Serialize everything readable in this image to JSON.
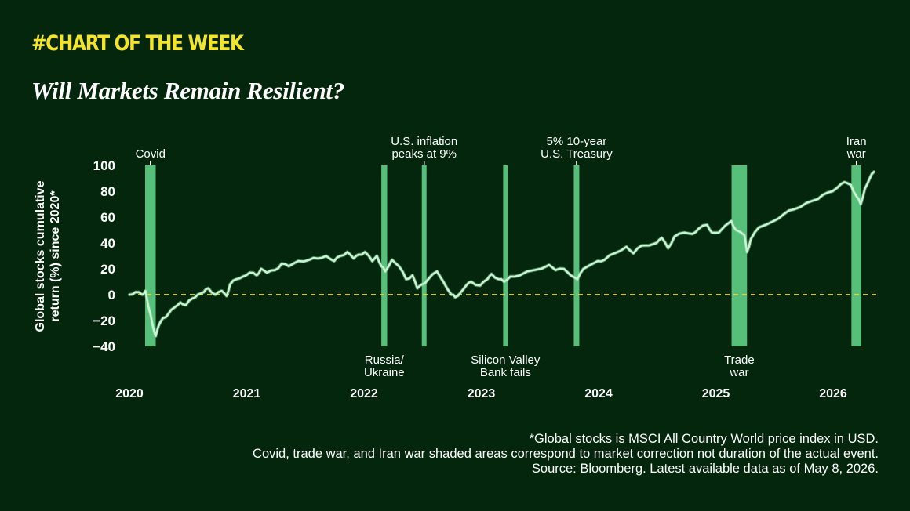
{
  "header": {
    "kicker": "#CHART OF THE WEEK",
    "title": "Will Markets Remain Resilient?"
  },
  "chart_data": {
    "type": "line",
    "ylabel": "Global stocks cumulative return (%) since 2020*",
    "yticks": [
      "100",
      "80",
      "60",
      "40",
      "20",
      "0",
      "−20",
      "−40"
    ],
    "xticks": [
      "2020",
      "2021",
      "2022",
      "2023",
      "2024",
      "2025",
      "2026"
    ],
    "ylim": [
      -40,
      100
    ],
    "xlim": [
      "2020-01-01",
      "2026-05-08"
    ],
    "zero_line": {
      "value": 0,
      "style": "dashed",
      "color": "#e8d93c"
    },
    "series": [
      {
        "color": "#c9f3d3",
        "points": [
          [
            "2020-01-01",
            0
          ],
          [
            "2020-01-20",
            2
          ],
          [
            "2020-02-10",
            0
          ],
          [
            "2020-02-20",
            3
          ],
          [
            "2020-03-01",
            -10
          ],
          [
            "2020-03-12",
            -22
          ],
          [
            "2020-03-23",
            -32
          ],
          [
            "2020-04-01",
            -24
          ],
          [
            "2020-04-15",
            -18
          ],
          [
            "2020-05-01",
            -15
          ],
          [
            "2020-05-20",
            -10
          ],
          [
            "2020-06-08",
            -6
          ],
          [
            "2020-06-25",
            -8
          ],
          [
            "2020-07-15",
            -3
          ],
          [
            "2020-08-01",
            0
          ],
          [
            "2020-08-20",
            2
          ],
          [
            "2020-09-03",
            5
          ],
          [
            "2020-09-25",
            0
          ],
          [
            "2020-10-15",
            3
          ],
          [
            "2020-10-30",
            -1
          ],
          [
            "2020-11-10",
            8
          ],
          [
            "2020-11-30",
            12
          ],
          [
            "2020-12-20",
            14
          ],
          [
            "2021-01-10",
            17
          ],
          [
            "2021-02-01",
            15
          ],
          [
            "2021-02-15",
            20
          ],
          [
            "2021-03-05",
            17
          ],
          [
            "2021-03-30",
            19
          ],
          [
            "2021-04-20",
            24
          ],
          [
            "2021-05-12",
            22
          ],
          [
            "2021-06-10",
            26
          ],
          [
            "2021-07-15",
            27
          ],
          [
            "2021-08-10",
            28
          ],
          [
            "2021-09-05",
            30
          ],
          [
            "2021-09-30",
            26
          ],
          [
            "2021-10-20",
            30
          ],
          [
            "2021-11-10",
            33
          ],
          [
            "2021-11-30",
            28
          ],
          [
            "2021-12-15",
            31
          ],
          [
            "2022-01-04",
            33
          ],
          [
            "2022-01-27",
            26
          ],
          [
            "2022-02-10",
            30
          ],
          [
            "2022-02-24",
            22
          ],
          [
            "2022-03-08",
            18
          ],
          [
            "2022-03-29",
            27
          ],
          [
            "2022-04-20",
            22
          ],
          [
            "2022-05-12",
            12
          ],
          [
            "2022-06-01",
            15
          ],
          [
            "2022-06-16",
            5
          ],
          [
            "2022-07-01",
            8
          ],
          [
            "2022-07-20",
            12
          ],
          [
            "2022-08-16",
            18
          ],
          [
            "2022-09-05",
            10
          ],
          [
            "2022-09-30",
            0
          ],
          [
            "2022-10-12",
            -2
          ],
          [
            "2022-10-30",
            2
          ],
          [
            "2022-11-15",
            7
          ],
          [
            "2022-12-01",
            10
          ],
          [
            "2022-12-28",
            7
          ],
          [
            "2023-01-20",
            12
          ],
          [
            "2023-02-02",
            16
          ],
          [
            "2023-02-24",
            12
          ],
          [
            "2023-03-13",
            10
          ],
          [
            "2023-04-01",
            14
          ],
          [
            "2023-05-01",
            15
          ],
          [
            "2023-06-15",
            19
          ],
          [
            "2023-07-31",
            23
          ],
          [
            "2023-08-20",
            19
          ],
          [
            "2023-09-15",
            20
          ],
          [
            "2023-10-27",
            12
          ],
          [
            "2023-11-15",
            20
          ],
          [
            "2023-12-29",
            26
          ],
          [
            "2024-01-20",
            27
          ],
          [
            "2024-02-20",
            32
          ],
          [
            "2024-03-28",
            37
          ],
          [
            "2024-04-19",
            32
          ],
          [
            "2024-05-15",
            38
          ],
          [
            "2024-06-30",
            40
          ],
          [
            "2024-07-16",
            44
          ],
          [
            "2024-08-05",
            36
          ],
          [
            "2024-08-25",
            45
          ],
          [
            "2024-09-25",
            48
          ],
          [
            "2024-10-20",
            47
          ],
          [
            "2024-11-08",
            51
          ],
          [
            "2024-12-05",
            54
          ],
          [
            "2024-12-20",
            48
          ],
          [
            "2025-01-10",
            48
          ],
          [
            "2025-02-18",
            57
          ],
          [
            "2025-03-05",
            50
          ],
          [
            "2025-03-31",
            46
          ],
          [
            "2025-04-08",
            33
          ],
          [
            "2025-04-20",
            43
          ],
          [
            "2025-05-15",
            52
          ],
          [
            "2025-06-30",
            57
          ],
          [
            "2025-07-30",
            62
          ],
          [
            "2025-09-01",
            66
          ],
          [
            "2025-10-10",
            71
          ],
          [
            "2025-11-15",
            74
          ],
          [
            "2025-12-15",
            79
          ],
          [
            "2026-01-15",
            83
          ],
          [
            "2026-02-05",
            87
          ],
          [
            "2026-02-25",
            85
          ],
          [
            "2026-03-15",
            76
          ],
          [
            "2026-03-28",
            70
          ],
          [
            "2026-04-10",
            82
          ],
          [
            "2026-04-25",
            90
          ],
          [
            "2026-05-08",
            95
          ]
        ]
      }
    ],
    "shaded_periods": [
      {
        "start": "2020-02-19",
        "end": "2020-03-23",
        "label_position": "top",
        "label_lines": [
          "Covid"
        ]
      },
      {
        "start": "2022-02-24",
        "end": "2022-03-14",
        "label_position": "bottom",
        "label_lines": [
          "Russia/",
          "Ukraine"
        ]
      },
      {
        "start": "2022-06-30",
        "end": "2022-07-14",
        "label_position": "top",
        "label_lines": [
          "U.S. inflation",
          "peaks at 9%"
        ]
      },
      {
        "start": "2023-03-10",
        "end": "2023-03-24",
        "label_position": "bottom",
        "label_lines": [
          "Silicon Valley",
          "Bank fails"
        ]
      },
      {
        "start": "2023-10-16",
        "end": "2023-11-02",
        "label_position": "top",
        "label_lines": [
          "5% 10-year",
          "U.S. Treasury"
        ]
      },
      {
        "start": "2025-02-19",
        "end": "2025-04-08",
        "label_position": "bottom",
        "label_lines": [
          "Trade",
          "war"
        ]
      },
      {
        "start": "2026-02-27",
        "end": "2026-03-30",
        "label_position": "top",
        "label_lines": [
          "Iran",
          "war"
        ]
      }
    ],
    "colors": {
      "shade": "#56c07a",
      "line": "#c9f3d3",
      "line_shadow": "#7ed69a",
      "zero": "#e8d93c"
    }
  },
  "footnotes": [
    "*Global stocks is MSCI All Country World price index in USD.",
    "Covid, trade war, and Iran war shaded areas correspond to market correction not duration of the actual event.",
    "Source: Bloomberg. Latest available data as of May 8, 2026."
  ]
}
